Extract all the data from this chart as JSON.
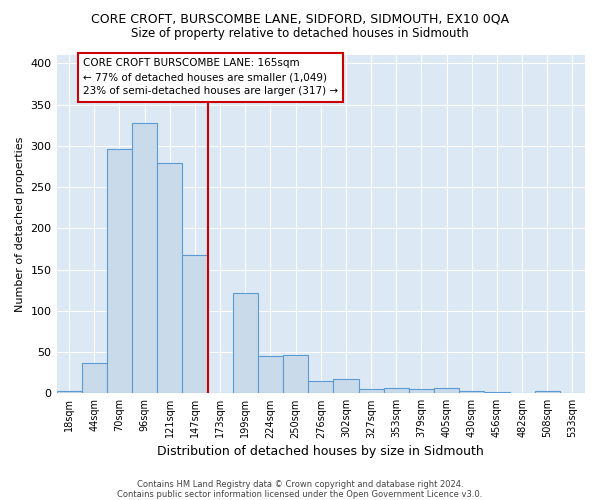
{
  "title": "CORE CROFT, BURSCOMBE LANE, SIDFORD, SIDMOUTH, EX10 0QA",
  "subtitle": "Size of property relative to detached houses in Sidmouth",
  "xlabel": "Distribution of detached houses by size in Sidmouth",
  "ylabel": "Number of detached properties",
  "bin_labels": [
    "18sqm",
    "44sqm",
    "70sqm",
    "96sqm",
    "121sqm",
    "147sqm",
    "173sqm",
    "199sqm",
    "224sqm",
    "250sqm",
    "276sqm",
    "302sqm",
    "327sqm",
    "353sqm",
    "379sqm",
    "405sqm",
    "430sqm",
    "456sqm",
    "482sqm",
    "508sqm",
    "533sqm"
  ],
  "bin_values": [
    3,
    37,
    296,
    328,
    279,
    168,
    0,
    122,
    45,
    46,
    15,
    17,
    5,
    6,
    5,
    6,
    3,
    1,
    0,
    3,
    0
  ],
  "bar_color": "#c9daea",
  "bar_edge_color": "#5b9bd5",
  "vline_x": 6.0,
  "vline_color": "#cc0000",
  "annotation_text": "CORE CROFT BURSCOMBE LANE: 165sqm\n← 77% of detached houses are smaller (1,049)\n23% of semi-detached houses are larger (317) →",
  "annotation_box_color": "white",
  "annotation_box_edge": "#cc0000",
  "footer1": "Contains HM Land Registry data © Crown copyright and database right 2024.",
  "footer2": "Contains public sector information licensed under the Open Government Licence v3.0.",
  "plot_bg_color": "#dce9f5",
  "ylim": [
    0,
    410
  ],
  "yticks": [
    0,
    50,
    100,
    150,
    200,
    250,
    300,
    350,
    400
  ]
}
